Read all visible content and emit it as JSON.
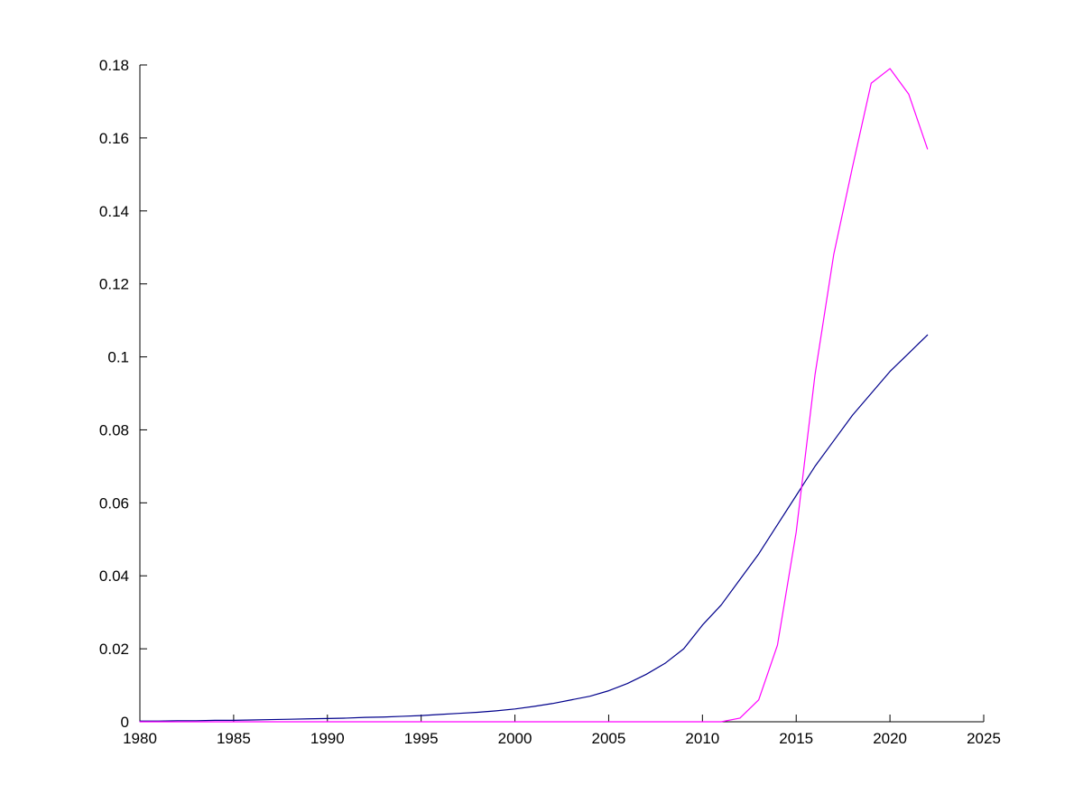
{
  "chart_data": {
    "type": "line",
    "title": "",
    "xlabel": "",
    "ylabel": "",
    "grid": false,
    "legend": null,
    "xlim": [
      1980,
      2025
    ],
    "ylim": [
      0,
      0.18
    ],
    "xticks": [
      1980,
      1985,
      1990,
      1995,
      2000,
      2005,
      2010,
      2015,
      2020,
      2025
    ],
    "xtick_labels": [
      "1980",
      "1985",
      "1990",
      "1995",
      "2000",
      "2005",
      "2010",
      "2015",
      "2020",
      "2025"
    ],
    "yticks": [
      0,
      0.02,
      0.04,
      0.06,
      0.08,
      0.1,
      0.12,
      0.14,
      0.16,
      0.18
    ],
    "ytick_labels": [
      "0",
      "0.02",
      "0.04",
      "0.06",
      "0.08",
      "0.1",
      "0.12",
      "0.14",
      "0.16",
      "0.18"
    ],
    "x": [
      1980,
      1981,
      1982,
      1983,
      1984,
      1985,
      1986,
      1987,
      1988,
      1989,
      1990,
      1991,
      1992,
      1993,
      1994,
      1995,
      1996,
      1997,
      1998,
      1999,
      2000,
      2001,
      2002,
      2003,
      2004,
      2005,
      2006,
      2007,
      2008,
      2009,
      2010,
      2011,
      2012,
      2013,
      2014,
      2015,
      2016,
      2017,
      2018,
      2019,
      2020,
      2021,
      2022
    ],
    "series": [
      {
        "name": "blue-series",
        "color": "#00008B",
        "values": [
          0.0002,
          0.0002,
          0.0003,
          0.0003,
          0.0004,
          0.0004,
          0.0005,
          0.0006,
          0.0007,
          0.0008,
          0.0009,
          0.001,
          0.0012,
          0.0013,
          0.0015,
          0.0017,
          0.002,
          0.0023,
          0.0026,
          0.003,
          0.0035,
          0.0042,
          0.005,
          0.006,
          0.007,
          0.0085,
          0.0105,
          0.013,
          0.016,
          0.02,
          0.0265,
          0.032,
          0.039,
          0.046,
          0.054,
          0.062,
          0.07,
          0.077,
          0.084,
          0.09,
          0.096,
          0.101,
          0.106
        ]
      },
      {
        "name": "magenta-series",
        "color": "#FF00FF",
        "values": [
          0,
          0,
          0,
          0,
          0,
          0,
          0,
          0,
          0,
          0,
          0,
          0,
          0,
          0,
          0,
          0,
          0,
          0,
          0,
          0,
          0,
          0,
          0,
          0,
          0,
          0,
          0,
          0,
          0,
          0,
          0,
          0,
          0.001,
          0.006,
          0.021,
          0.052,
          0.095,
          0.128,
          0.152,
          0.175,
          0.179,
          0.172,
          0.157
        ]
      }
    ]
  },
  "colors": {
    "background": "#ffffff",
    "axis": "#000000"
  }
}
